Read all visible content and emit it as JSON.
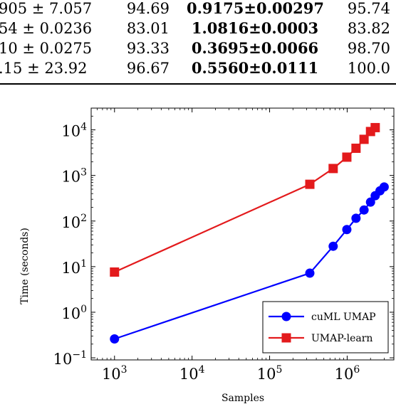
{
  "table": {
    "rows": [
      [
        "905 ± 7.057",
        "94.69",
        "0.9175±0.00297",
        "95.74"
      ],
      [
        "54 ± 0.0236",
        "83.01",
        "1.0816±0.0003",
        "83.82"
      ],
      [
        "10 ± 0.0275",
        "93.33",
        "0.3695±0.0066",
        "98.70"
      ],
      [
        ".15 ± 23.92",
        "96.67",
        "0.5560±0.0111",
        "100.0"
      ]
    ]
  },
  "chart_data": {
    "type": "line",
    "xlabel": "Samples",
    "ylabel": "Time (seconds)",
    "xscale": "log",
    "yscale": "log",
    "xlim": [
      500,
      4000000
    ],
    "ylim": [
      0.09,
      30000
    ],
    "x_ticks": [
      1000,
      10000,
      100000,
      1000000
    ],
    "x_tick_labels": [
      {
        "base": "10",
        "exp": "3"
      },
      {
        "base": "10",
        "exp": "4"
      },
      {
        "base": "10",
        "exp": "5"
      },
      {
        "base": "10",
        "exp": "6"
      }
    ],
    "y_ticks": [
      0.1,
      1,
      10,
      100,
      1000,
      10000
    ],
    "y_tick_labels": [
      {
        "base": "10",
        "exp": "−1"
      },
      {
        "base": "10",
        "exp": "0"
      },
      {
        "base": "10",
        "exp": "1"
      },
      {
        "base": "10",
        "exp": "2"
      },
      {
        "base": "10",
        "exp": "3"
      },
      {
        "base": "10",
        "exp": "4"
      }
    ],
    "legend_position": "bottom-right",
    "series": [
      {
        "name": "cuML UMAP",
        "color": "#0000ff",
        "marker": "circle",
        "points": [
          [
            1000,
            0.26
          ],
          [
            330000,
            7.2
          ],
          [
            660000,
            28
          ],
          [
            990000,
            65
          ],
          [
            1300000,
            115
          ],
          [
            1650000,
            175
          ],
          [
            2000000,
            260
          ],
          [
            2300000,
            360
          ],
          [
            2650000,
            460
          ],
          [
            3000000,
            560
          ]
        ]
      },
      {
        "name": "UMAP-learn",
        "color": "#e31a1c",
        "marker": "square",
        "points": [
          [
            1000,
            7.6
          ],
          [
            330000,
            640
          ],
          [
            660000,
            1420
          ],
          [
            990000,
            2520
          ],
          [
            1300000,
            3950
          ],
          [
            1650000,
            6200
          ],
          [
            2000000,
            9200
          ],
          [
            2300000,
            11200
          ]
        ]
      }
    ]
  }
}
